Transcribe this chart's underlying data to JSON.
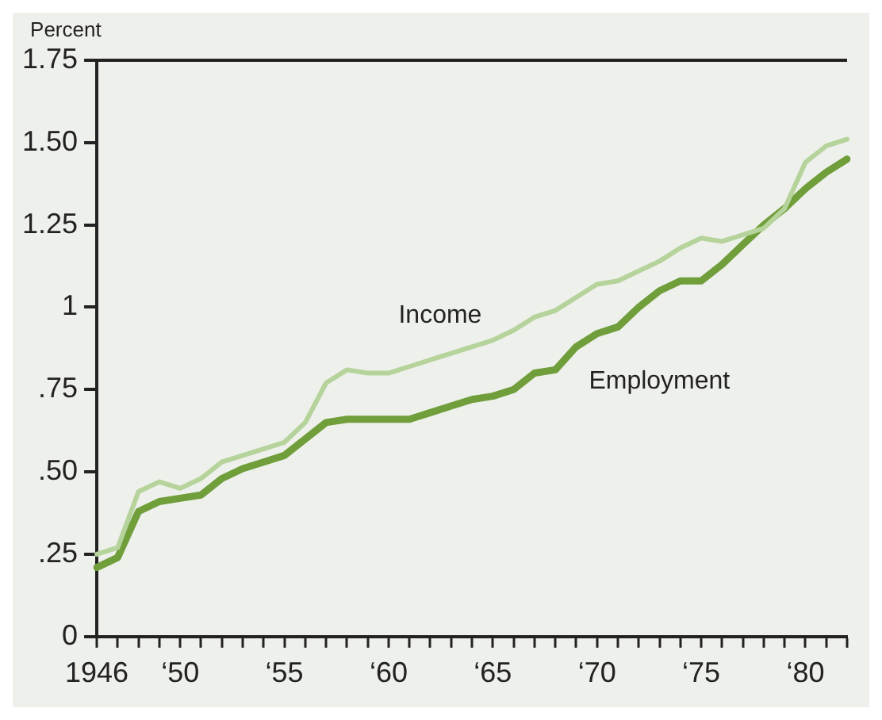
{
  "chart_data": {
    "type": "line",
    "ylabel": "Percent",
    "ylim": [
      0,
      1.75
    ],
    "categories": [
      "1946",
      null,
      null,
      null,
      "‘50",
      null,
      null,
      null,
      null,
      "‘55",
      null,
      null,
      null,
      null,
      "‘60",
      null,
      null,
      null,
      null,
      "‘65",
      null,
      null,
      null,
      null,
      "‘70",
      null,
      null,
      null,
      null,
      "‘75",
      null,
      null,
      null,
      null,
      "‘80",
      null,
      null
    ],
    "yticks": [
      0,
      {
        "value": 0.25,
        "label": ".25"
      },
      {
        "value": 0.5,
        "label": ".50"
      },
      {
        "value": 0.75,
        "label": ".75"
      },
      1,
      1.25,
      {
        "value": 1.5,
        "label": "1.50"
      },
      1.75
    ],
    "grid": false,
    "legend": false,
    "marker": "none",
    "line_style": "solid",
    "series": [
      {
        "name": "Income",
        "color": "#b5d39a",
        "values": [
          0.25,
          0.27,
          0.44,
          0.47,
          0.45,
          0.48,
          0.53,
          0.55,
          0.57,
          0.59,
          0.65,
          0.77,
          0.81,
          0.8,
          0.8,
          0.82,
          0.84,
          0.86,
          0.88,
          0.9,
          0.93,
          0.97,
          0.99,
          1.03,
          1.07,
          1.08,
          1.11,
          1.14,
          1.18,
          1.21,
          1.2,
          1.22,
          1.24,
          1.3,
          1.44,
          1.49,
          1.51
        ]
      },
      {
        "name": "Employment",
        "color": "#6f9e3a",
        "values": [
          0.21,
          0.24,
          0.38,
          0.41,
          0.42,
          0.43,
          0.48,
          0.51,
          0.53,
          0.55,
          0.6,
          0.65,
          0.66,
          0.66,
          0.66,
          0.66,
          0.68,
          0.7,
          0.72,
          0.73,
          0.75,
          0.8,
          0.81,
          0.88,
          0.92,
          0.94,
          1.0,
          1.05,
          1.08,
          1.08,
          1.13,
          1.19,
          1.25,
          1.3,
          1.36,
          1.41,
          1.45
        ]
      }
    ]
  }
}
